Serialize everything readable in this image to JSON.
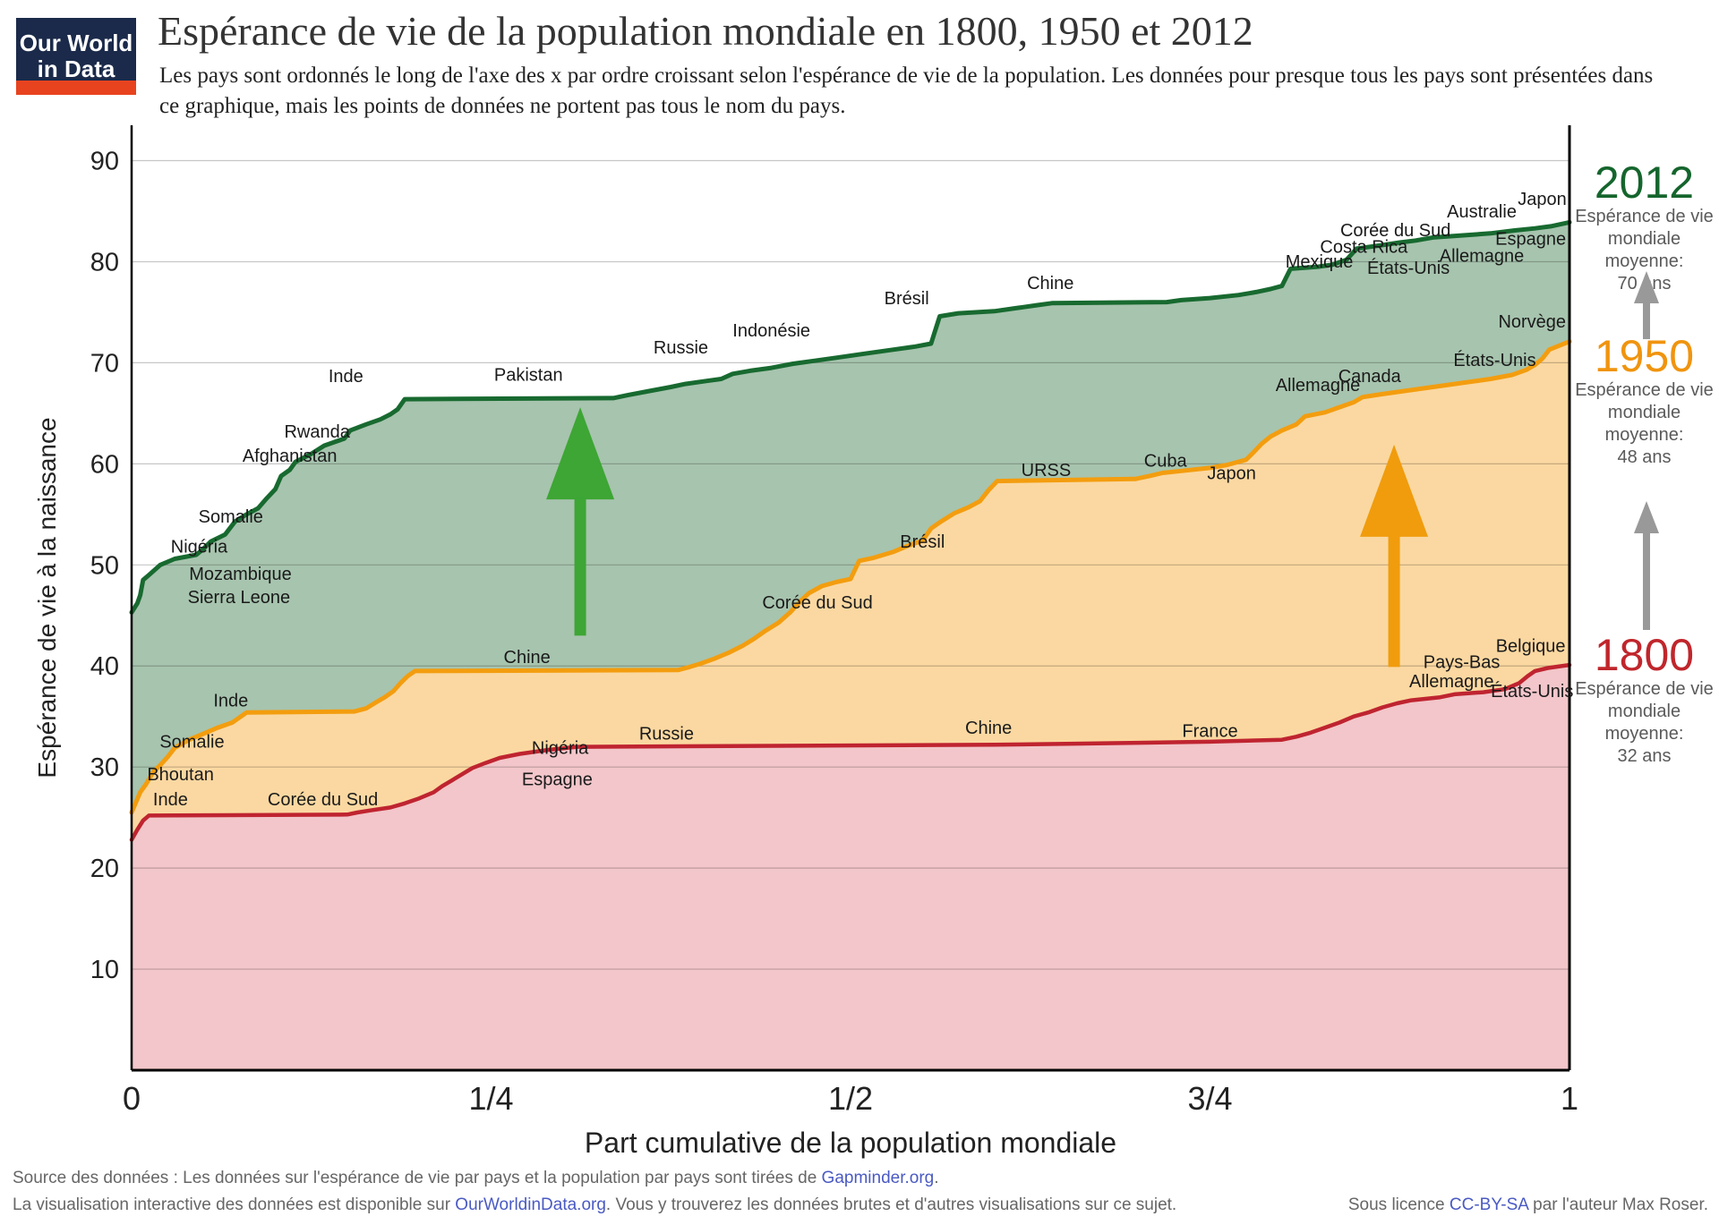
{
  "logo": {
    "line1": "Our World",
    "line2": "in Data"
  },
  "header": {
    "title": "Espérance de vie de la population mondiale en 1800, 1950 et 2012",
    "subtitle": "Les pays sont ordonnés le long de l'axe des x par ordre croissant selon l'espérance de vie de la population. Les données pour presque tous les pays sont présentées dans ce graphique, mais les points de données ne portent pas tous le nom du pays."
  },
  "chart_data": {
    "type": "area",
    "x_axis": {
      "label": "Part cumulative de la population mondiale",
      "range": [
        0,
        1
      ],
      "ticks": [
        {
          "pos": 0,
          "label": "0"
        },
        {
          "pos": 0.25,
          "label": "1/4"
        },
        {
          "pos": 0.5,
          "label": "1/2"
        },
        {
          "pos": 0.75,
          "label": "3/4"
        },
        {
          "pos": 1,
          "label": "1"
        }
      ]
    },
    "y_axis": {
      "label": "Espérance de vie à la naissance",
      "range": [
        0,
        93.5
      ],
      "ticks": [
        10,
        20,
        30,
        40,
        50,
        60,
        70,
        80,
        90
      ],
      "grid": true
    },
    "series": [
      {
        "name": "2012",
        "stroke": "#186a30",
        "fill": "#a7c4ae",
        "stroke_width": 5,
        "points": [
          [
            0,
            45.3
          ],
          [
            0.004,
            46.2
          ],
          [
            0.006,
            47.0
          ],
          [
            0.008,
            48.5
          ],
          [
            0.012,
            49.0
          ],
          [
            0.02,
            50.0
          ],
          [
            0.03,
            50.6
          ],
          [
            0.045,
            51.0
          ],
          [
            0.05,
            51.6
          ],
          [
            0.055,
            52.3
          ],
          [
            0.065,
            53.0
          ],
          [
            0.072,
            54.3
          ],
          [
            0.08,
            55.0
          ],
          [
            0.088,
            55.6
          ],
          [
            0.094,
            56.6
          ],
          [
            0.1,
            57.5
          ],
          [
            0.104,
            58.8
          ],
          [
            0.11,
            59.4
          ],
          [
            0.114,
            60.2
          ],
          [
            0.125,
            61.0
          ],
          [
            0.134,
            61.8
          ],
          [
            0.148,
            62.5
          ],
          [
            0.152,
            63.3
          ],
          [
            0.163,
            63.9
          ],
          [
            0.173,
            64.4
          ],
          [
            0.18,
            64.9
          ],
          [
            0.185,
            65.4
          ],
          [
            0.19,
            66.4
          ],
          [
            0.335,
            66.5
          ],
          [
            0.345,
            66.8
          ],
          [
            0.36,
            67.2
          ],
          [
            0.375,
            67.6
          ],
          [
            0.385,
            67.9
          ],
          [
            0.4,
            68.2
          ],
          [
            0.41,
            68.4
          ],
          [
            0.418,
            68.9
          ],
          [
            0.43,
            69.2
          ],
          [
            0.445,
            69.5
          ],
          [
            0.46,
            69.9
          ],
          [
            0.475,
            70.2
          ],
          [
            0.49,
            70.5
          ],
          [
            0.51,
            70.9
          ],
          [
            0.53,
            71.3
          ],
          [
            0.545,
            71.6
          ],
          [
            0.556,
            71.9
          ],
          [
            0.562,
            74.6
          ],
          [
            0.575,
            74.9
          ],
          [
            0.6,
            75.1
          ],
          [
            0.615,
            75.4
          ],
          [
            0.63,
            75.7
          ],
          [
            0.64,
            75.9
          ],
          [
            0.72,
            76.0
          ],
          [
            0.73,
            76.2
          ],
          [
            0.75,
            76.4
          ],
          [
            0.77,
            76.7
          ],
          [
            0.782,
            77.0
          ],
          [
            0.792,
            77.3
          ],
          [
            0.8,
            77.6
          ],
          [
            0.806,
            79.3
          ],
          [
            0.825,
            79.5
          ],
          [
            0.835,
            79.7
          ],
          [
            0.845,
            80.2
          ],
          [
            0.852,
            81.3
          ],
          [
            0.868,
            81.6
          ],
          [
            0.882,
            81.9
          ],
          [
            0.893,
            82.1
          ],
          [
            0.905,
            82.4
          ],
          [
            0.925,
            82.6
          ],
          [
            0.945,
            82.8
          ],
          [
            0.962,
            83.1
          ],
          [
            0.976,
            83.3
          ],
          [
            0.987,
            83.5
          ],
          [
            1,
            83.9
          ]
        ],
        "labels": [
          {
            "text": "Sierra Leone",
            "x": 0.039,
            "y": 46.2,
            "anchor": "start"
          },
          {
            "text": "Mozambique",
            "x": 0.04,
            "y": 48.5,
            "anchor": "start"
          },
          {
            "text": "Nigéria",
            "x": 0.047,
            "y": 51.2
          },
          {
            "text": "Somalie",
            "x": 0.069,
            "y": 54.2
          },
          {
            "text": "Afghanistan",
            "x": 0.11,
            "y": 60.2
          },
          {
            "text": "Rwanda",
            "x": 0.129,
            "y": 62.6
          },
          {
            "text": "Inde",
            "x": 0.149,
            "y": 68.1
          },
          {
            "text": "Pakistan",
            "x": 0.276,
            "y": 68.2
          },
          {
            "text": "Russie",
            "x": 0.382,
            "y": 70.9
          },
          {
            "text": "Indonésie",
            "x": 0.445,
            "y": 72.6
          },
          {
            "text": "Brésil",
            "x": 0.539,
            "y": 75.8
          },
          {
            "text": "Chine",
            "x": 0.639,
            "y": 77.3
          },
          {
            "text": "Mexique",
            "x": 0.826,
            "y": 79.4
          },
          {
            "text": "Costa Rica",
            "x": 0.857,
            "y": 80.9
          },
          {
            "text": "Corée du Sud",
            "x": 0.879,
            "y": 82.5
          },
          {
            "text": "États-Unis",
            "x": 0.888,
            "y": 78.8
          },
          {
            "text": "Allemagne",
            "x": 0.939,
            "y": 80.0
          },
          {
            "text": "Espagne",
            "x": 0.973,
            "y": 81.7
          },
          {
            "text": "Australie",
            "x": 0.939,
            "y": 84.4
          },
          {
            "text": "Japon",
            "x": 0.981,
            "y": 85.6
          }
        ]
      },
      {
        "name": "1950",
        "stroke": "#f39d0f",
        "fill": "#fbd8a1",
        "stroke_width": 5,
        "points": [
          [
            0,
            25.5
          ],
          [
            0.003,
            26.5
          ],
          [
            0.006,
            27.5
          ],
          [
            0.01,
            28.3
          ],
          [
            0.015,
            29.5
          ],
          [
            0.02,
            30.2
          ],
          [
            0.025,
            31.0
          ],
          [
            0.03,
            31.9
          ],
          [
            0.04,
            32.7
          ],
          [
            0.05,
            33.3
          ],
          [
            0.06,
            33.9
          ],
          [
            0.07,
            34.4
          ],
          [
            0.08,
            35.4
          ],
          [
            0.155,
            35.5
          ],
          [
            0.163,
            35.8
          ],
          [
            0.17,
            36.4
          ],
          [
            0.176,
            36.9
          ],
          [
            0.182,
            37.5
          ],
          [
            0.187,
            38.3
          ],
          [
            0.192,
            39.0
          ],
          [
            0.197,
            39.5
          ],
          [
            0.38,
            39.6
          ],
          [
            0.388,
            39.9
          ],
          [
            0.395,
            40.2
          ],
          [
            0.405,
            40.7
          ],
          [
            0.415,
            41.3
          ],
          [
            0.425,
            42.0
          ],
          [
            0.433,
            42.7
          ],
          [
            0.44,
            43.4
          ],
          [
            0.45,
            44.3
          ],
          [
            0.458,
            45.3
          ],
          [
            0.465,
            46.4
          ],
          [
            0.471,
            47.2
          ],
          [
            0.48,
            47.9
          ],
          [
            0.49,
            48.3
          ],
          [
            0.5,
            48.6
          ],
          [
            0.506,
            50.4
          ],
          [
            0.516,
            50.7
          ],
          [
            0.53,
            51.3
          ],
          [
            0.54,
            51.9
          ],
          [
            0.55,
            52.4
          ],
          [
            0.556,
            53.6
          ],
          [
            0.563,
            54.3
          ],
          [
            0.572,
            55.1
          ],
          [
            0.582,
            55.7
          ],
          [
            0.59,
            56.3
          ],
          [
            0.596,
            57.4
          ],
          [
            0.602,
            58.3
          ],
          [
            0.698,
            58.5
          ],
          [
            0.708,
            58.8
          ],
          [
            0.717,
            59.1
          ],
          [
            0.73,
            59.3
          ],
          [
            0.75,
            59.6
          ],
          [
            0.762,
            59.9
          ],
          [
            0.775,
            60.4
          ],
          [
            0.78,
            61.1
          ],
          [
            0.786,
            62.0
          ],
          [
            0.792,
            62.7
          ],
          [
            0.8,
            63.3
          ],
          [
            0.81,
            63.9
          ],
          [
            0.816,
            64.7
          ],
          [
            0.83,
            65.1
          ],
          [
            0.84,
            65.6
          ],
          [
            0.85,
            66.1
          ],
          [
            0.856,
            66.6
          ],
          [
            0.87,
            66.9
          ],
          [
            0.89,
            67.3
          ],
          [
            0.91,
            67.7
          ],
          [
            0.93,
            68.1
          ],
          [
            0.945,
            68.4
          ],
          [
            0.96,
            68.8
          ],
          [
            0.97,
            69.3
          ],
          [
            0.976,
            69.8
          ],
          [
            0.981,
            70.4
          ],
          [
            0.986,
            71.3
          ],
          [
            1,
            72.1
          ]
        ],
        "labels": [
          {
            "text": "Inde",
            "x": 0.069,
            "y": 36.0
          },
          {
            "text": "Somalie",
            "x": 0.042,
            "y": 31.9
          },
          {
            "text": "Bhoutan",
            "x": 0.034,
            "y": 28.7
          },
          {
            "text": "Chine",
            "x": 0.275,
            "y": 40.3
          },
          {
            "text": "Corée du Sud",
            "x": 0.477,
            "y": 45.7
          },
          {
            "text": "Brésil",
            "x": 0.55,
            "y": 51.7
          },
          {
            "text": "URSS",
            "x": 0.636,
            "y": 58.8
          },
          {
            "text": "Cuba",
            "x": 0.719,
            "y": 59.7
          },
          {
            "text": "Japon",
            "x": 0.765,
            "y": 58.5
          },
          {
            "text": "Allemagne",
            "x": 0.825,
            "y": 67.2
          },
          {
            "text": "Canada",
            "x": 0.861,
            "y": 68.1
          },
          {
            "text": "États-Unis",
            "x": 0.948,
            "y": 69.7
          },
          {
            "text": "Norvège",
            "x": 0.974,
            "y": 73.5
          }
        ]
      },
      {
        "name": "1800",
        "stroke": "#bf2430",
        "fill": "#f2c6ca",
        "stroke_width": 4.5,
        "points": [
          [
            0,
            22.8
          ],
          [
            0.004,
            23.8
          ],
          [
            0.008,
            24.7
          ],
          [
            0.012,
            25.2
          ],
          [
            0.15,
            25.3
          ],
          [
            0.157,
            25.5
          ],
          [
            0.166,
            25.7
          ],
          [
            0.18,
            26.0
          ],
          [
            0.19,
            26.4
          ],
          [
            0.2,
            26.9
          ],
          [
            0.21,
            27.5
          ],
          [
            0.216,
            28.1
          ],
          [
            0.223,
            28.7
          ],
          [
            0.23,
            29.3
          ],
          [
            0.237,
            29.9
          ],
          [
            0.246,
            30.4
          ],
          [
            0.256,
            30.9
          ],
          [
            0.27,
            31.3
          ],
          [
            0.29,
            31.7
          ],
          [
            0.31,
            32.0
          ],
          [
            0.6,
            32.2
          ],
          [
            0.65,
            32.3
          ],
          [
            0.7,
            32.4
          ],
          [
            0.75,
            32.5
          ],
          [
            0.8,
            32.7
          ],
          [
            0.81,
            33.0
          ],
          [
            0.82,
            33.4
          ],
          [
            0.83,
            33.9
          ],
          [
            0.84,
            34.4
          ],
          [
            0.85,
            35.0
          ],
          [
            0.86,
            35.4
          ],
          [
            0.87,
            35.9
          ],
          [
            0.88,
            36.3
          ],
          [
            0.89,
            36.6
          ],
          [
            0.91,
            36.9
          ],
          [
            0.92,
            37.2
          ],
          [
            0.94,
            37.4
          ],
          [
            0.955,
            37.7
          ],
          [
            0.965,
            38.3
          ],
          [
            0.971,
            39.0
          ],
          [
            0.976,
            39.5
          ],
          [
            0.985,
            39.8
          ],
          [
            1,
            40.1
          ]
        ],
        "labels": [
          {
            "text": "Inde",
            "x": 0.027,
            "y": 26.2
          },
          {
            "text": "Corée du Sud",
            "x": 0.133,
            "y": 26.2
          },
          {
            "text": "Espagne",
            "x": 0.296,
            "y": 28.2
          },
          {
            "text": "Nigéria",
            "x": 0.298,
            "y": 31.3
          },
          {
            "text": "Russie",
            "x": 0.372,
            "y": 32.7
          },
          {
            "text": "Chine",
            "x": 0.596,
            "y": 33.3
          },
          {
            "text": "France",
            "x": 0.75,
            "y": 33.0
          },
          {
            "text": "Allemagne",
            "x": 0.918,
            "y": 37.9
          },
          {
            "text": "Pays-Bas",
            "x": 0.925,
            "y": 39.8
          },
          {
            "text": "Belgique",
            "x": 0.973,
            "y": 41.4
          },
          {
            "text": "États-Unis",
            "x": 0.974,
            "y": 36.9
          }
        ]
      }
    ],
    "arrows": [
      {
        "name": "green-up-arrow",
        "color": "#3da634",
        "x": 0.312,
        "y_from": 43.0,
        "y_to": 65.6
      },
      {
        "name": "orange-up-arrow",
        "color": "#f09c0d",
        "x": 0.878,
        "y_from": 39.9,
        "y_to": 61.9
      }
    ],
    "grid_color": "rgba(0,0,0,0.22)",
    "label_color": "#1a1a1a"
  },
  "annotations": [
    {
      "year": "2012",
      "line1": "Espérance de vie",
      "line2": "mondiale moyenne:",
      "line3": "70 ans"
    },
    {
      "year": "1950",
      "line1": "Espérance de vie",
      "line2": "mondiale moyenne:",
      "line3": "48 ans"
    },
    {
      "year": "1800",
      "line1": "Espérance de vie",
      "line2": "mondiale moyenne:",
      "line3": "32 ans"
    }
  ],
  "footer": {
    "line1_prefix": "Source des données : Les données sur l'espérance de vie par pays et la population par pays sont tirées de ",
    "line1_link": "Gapminder.org",
    "line1_suffix": ".",
    "line2_prefix": "La visualisation interactive des données est disponible sur ",
    "line2_link": "OurWorldinData.org",
    "line2_suffix": ". Vous y trouverez les données brutes et d'autres visualisations sur ce sujet.",
    "license_prefix": "Sous licence ",
    "license_link": "CC-BY-SA",
    "license_suffix": " par l'auteur Max Roser."
  }
}
